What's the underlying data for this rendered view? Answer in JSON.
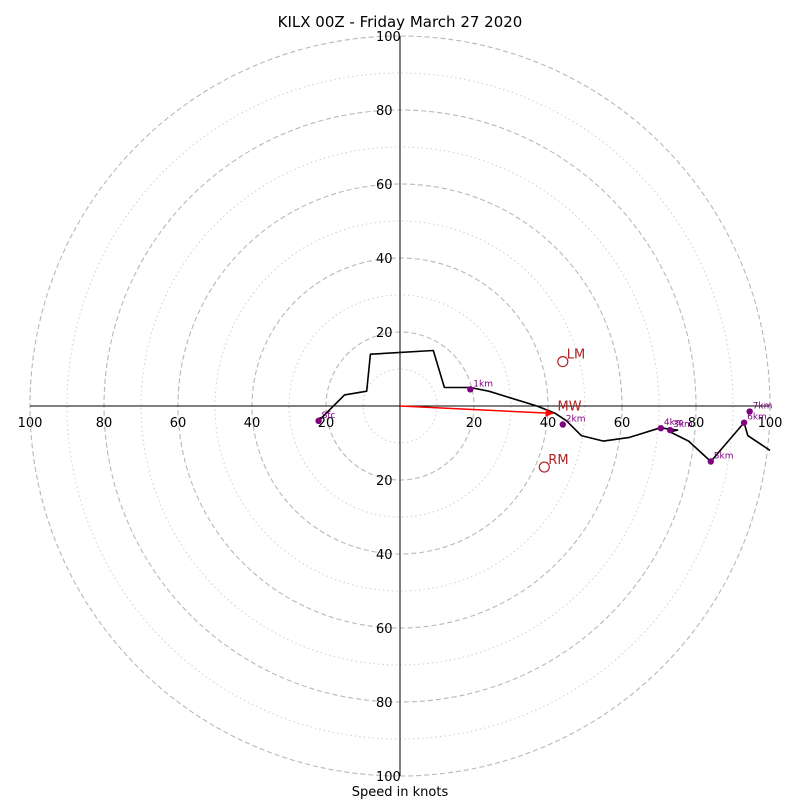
{
  "chart_data": {
    "type": "hodograph",
    "title": "KILX 00Z - Friday March 27 2020",
    "xlabel": "Speed in knots",
    "units": "knots",
    "range": [
      -100,
      100
    ],
    "tick_values": [
      20,
      40,
      60,
      80,
      100
    ],
    "grid": {
      "major_rings": [
        10,
        20,
        30,
        40,
        50,
        60,
        70,
        80,
        90,
        100
      ],
      "dashed_every": 20,
      "minor_style": "dotted"
    },
    "colors": {
      "trace": "#000000",
      "height_marker": "#800080",
      "storm_motion": "#b22222",
      "mean_wind_vector": "#ff0000",
      "grid": "#bdbdbd"
    },
    "wind_profile": {
      "u": [
        -22,
        -20,
        -15,
        -9,
        -8,
        9,
        12,
        16,
        19,
        24,
        37,
        42,
        45,
        49,
        55,
        62,
        70,
        71,
        75,
        73,
        78,
        84,
        93,
        94,
        100
      ],
      "v": [
        -4,
        -2,
        3,
        4,
        14,
        15,
        5,
        5,
        5,
        4,
        0,
        -2,
        -4,
        -8,
        -9.5,
        -8.5,
        -6,
        -6,
        -6.5,
        -7,
        -9.5,
        -15,
        -4.5,
        -8,
        -12
      ]
    },
    "height_markers": [
      {
        "label": "Sfc",
        "u": -22,
        "v": -4
      },
      {
        "label": "1km",
        "u": 19,
        "v": 4.5
      },
      {
        "label": "2km",
        "u": 44,
        "v": -5
      },
      {
        "label": "3km",
        "u": 73,
        "v": -6.5
      },
      {
        "label": "4km",
        "u": 70.5,
        "v": -6
      },
      {
        "label": "5km",
        "u": 84,
        "v": -15
      },
      {
        "label": "6km",
        "u": 93,
        "v": -4.5
      },
      {
        "label": "7km",
        "u": 94.5,
        "v": -1.5
      }
    ],
    "storm_motion": [
      {
        "label": "LM",
        "u": 44,
        "v": 12
      },
      {
        "label": "RM",
        "u": 39,
        "v": -16.5
      },
      {
        "label": "MW",
        "u": 41.5,
        "v": -2
      }
    ]
  }
}
